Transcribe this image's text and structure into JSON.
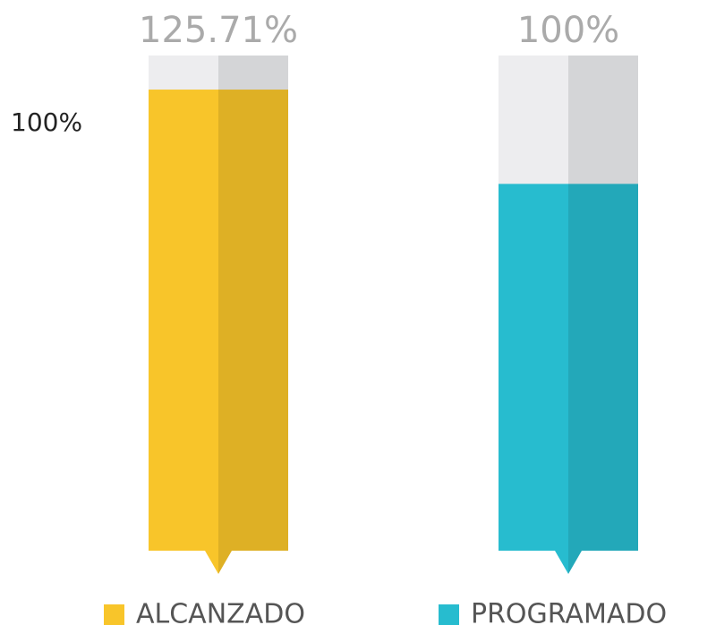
{
  "chart_data": {
    "type": "bar",
    "categories": [
      "ALCANZADO",
      "PROGRAMADO"
    ],
    "values": [
      125.71,
      100
    ],
    "value_labels": [
      "125.71%",
      "100%"
    ],
    "colors": [
      "#f8c52a",
      "#27bccf"
    ],
    "annotation": "100%",
    "ylim": [
      0,
      135
    ]
  }
}
